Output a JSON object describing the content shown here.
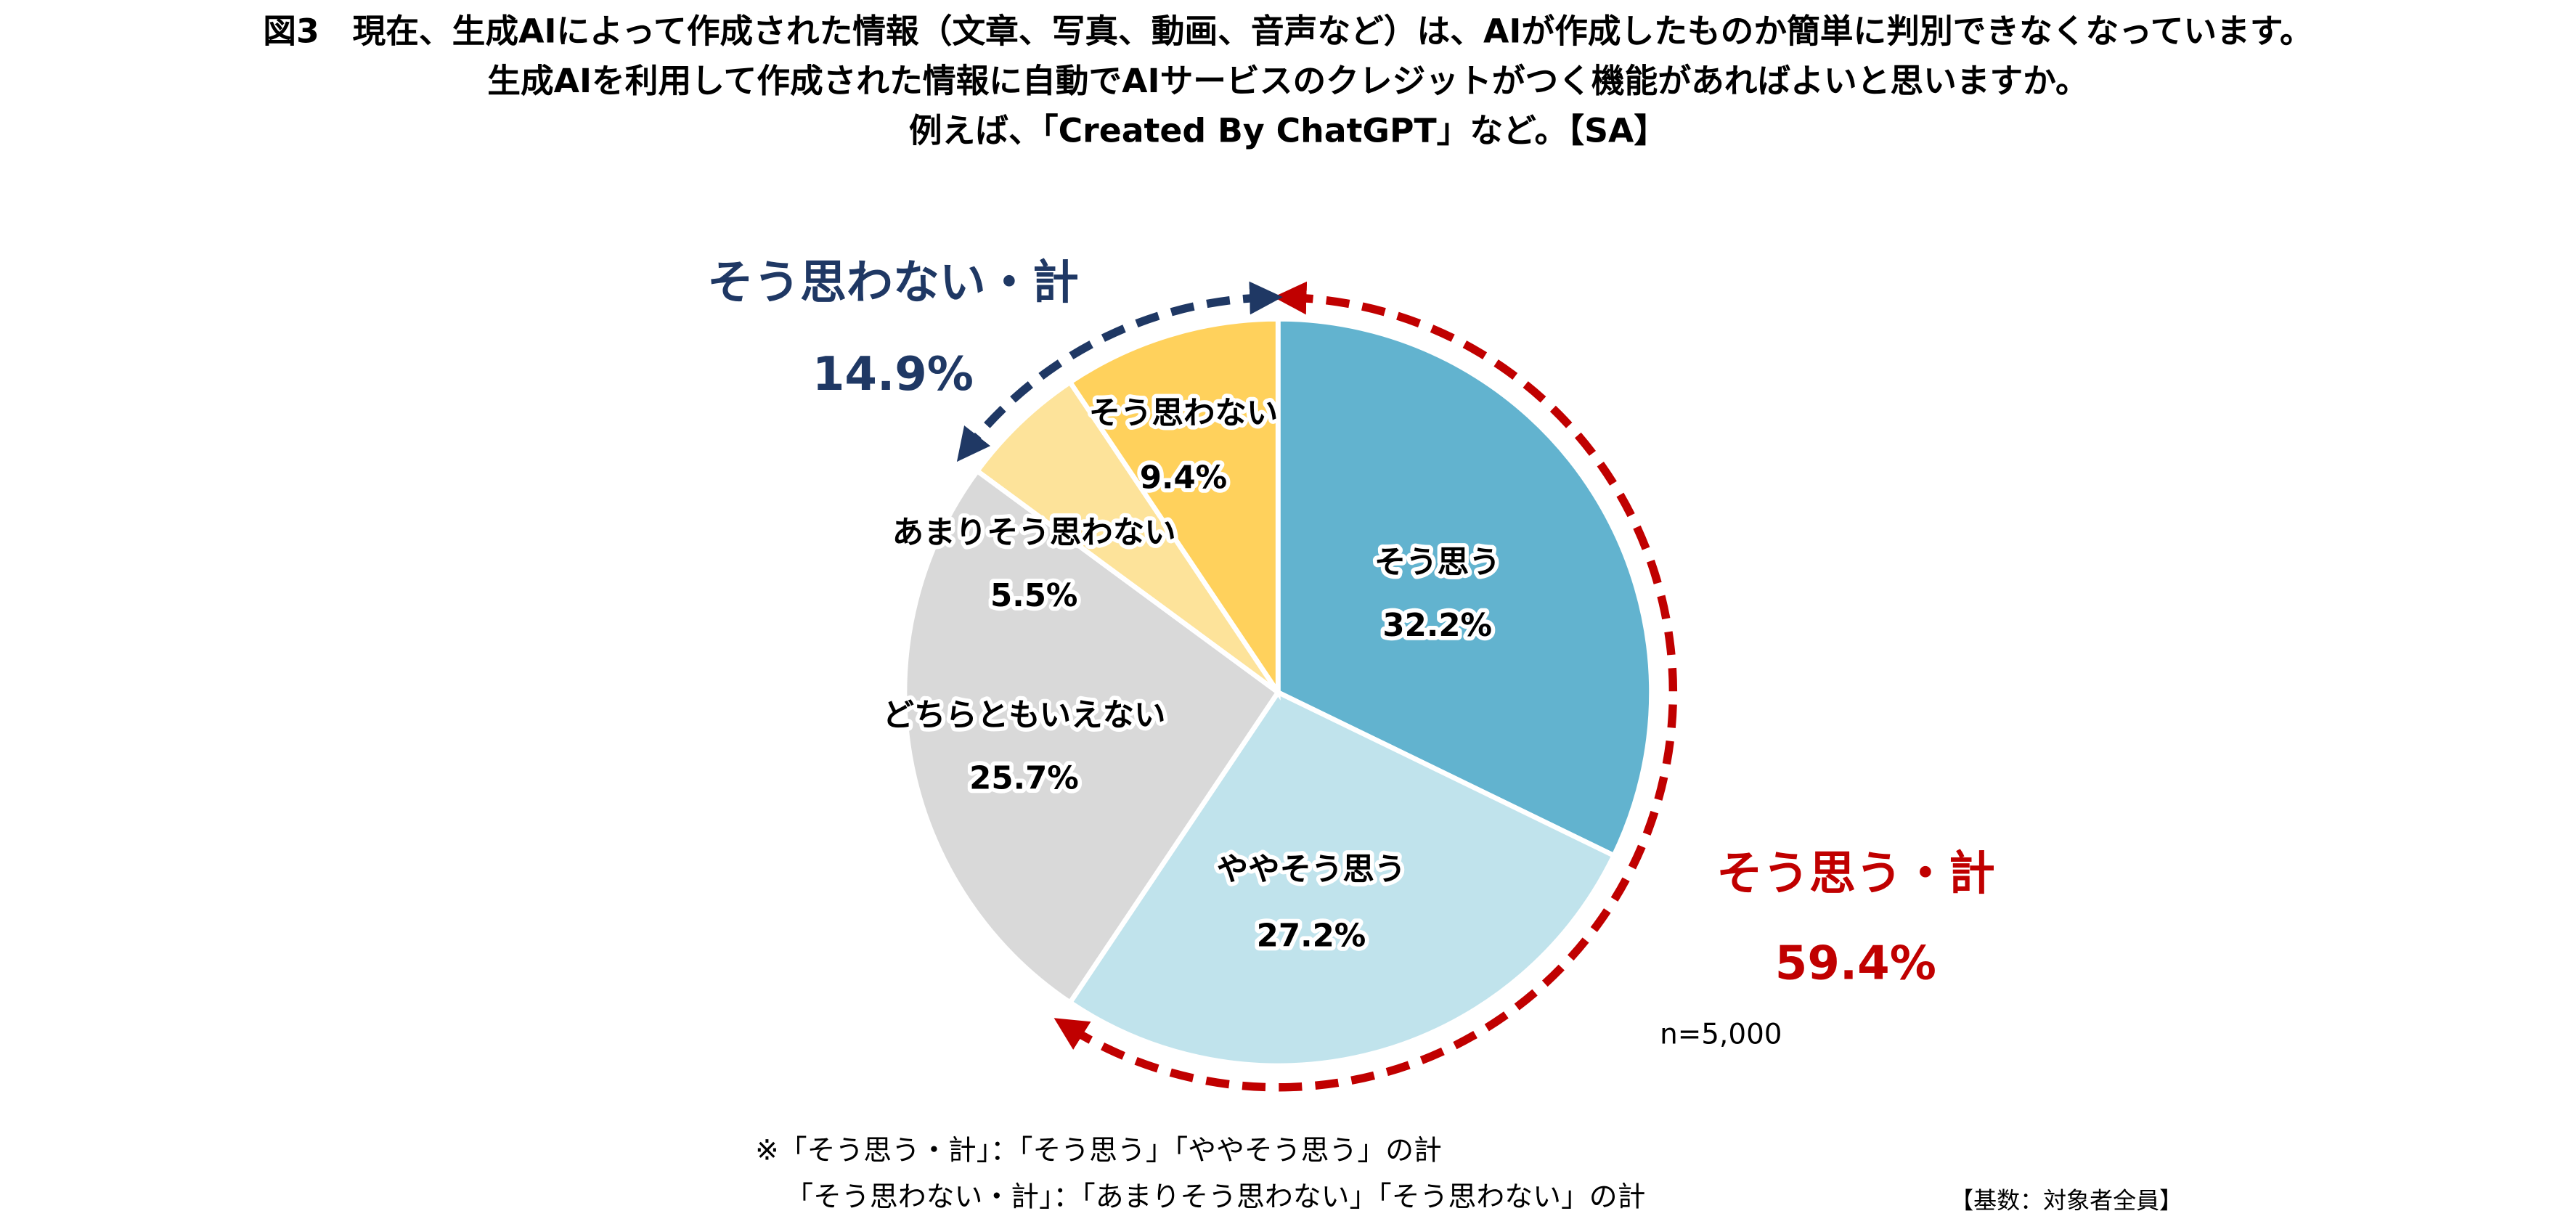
{
  "chart_data": {
    "type": "pie",
    "title": [
      "図3　現在、生成AIによって作成された情報（文章、写真、動画、音声など）は、AIが作成したものか簡単に判別できなくなっています。",
      "生成AIを利用して作成された情報に自動でAIサービスのクレジットがつく機能があればよいと思いますか。",
      "例えば、「Created By ChatGPT」など。【SA】"
    ],
    "categories": [
      "そう思う",
      "ややそう思う",
      "どちらともいえない",
      "あまりそう思わない",
      "そう思わない"
    ],
    "values": [
      32.2,
      27.2,
      25.7,
      5.5,
      9.4
    ],
    "value_labels": [
      "32.2%",
      "27.2%",
      "25.7%",
      "5.5%",
      "9.4%"
    ],
    "colors": [
      "#62b3cf",
      "#c0e3ec",
      "#d9d9d9",
      "#fde39a",
      "#ffd15c"
    ],
    "annotations": [
      {
        "text": "そう思わない・計",
        "value_label": "14.9%",
        "color": "#1f3864"
      },
      {
        "text": "そう思う・計",
        "value_label": "59.4%",
        "color": "#c00000"
      }
    ],
    "sample_note": "n=5,000",
    "footnotes": [
      "※「そう思う・計」：「そう思う」「ややそう思う」の計",
      "「そう思わない・計」：「あまりそう思わない」「そう思わない」の計"
    ],
    "base_note": "【基数：対象者全員】"
  }
}
